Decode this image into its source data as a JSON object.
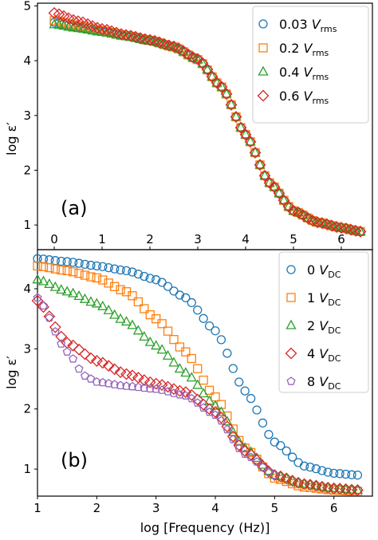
{
  "chart_data": [
    {
      "type": "scatter",
      "panel_label": "(a)",
      "ylabel_main": "log ε",
      "ylabel_prime": "′",
      "xlabel": "",
      "xlim": [
        -0.35,
        6.65
      ],
      "ylim": [
        0.55,
        5.05
      ],
      "x_ticks": [
        "0",
        "1",
        "2",
        "3",
        "4",
        "5",
        "6"
      ],
      "y_ticks": [
        "1",
        "2",
        "3",
        "4",
        "5"
      ],
      "x_tick_position": "top-inside",
      "grid": false,
      "legend_position": "top-right",
      "series": [
        {
          "name": "0.03",
          "unit": "V",
          "subscript": "rms",
          "marker": "circle",
          "color": "#1f77b4",
          "x": [
            0,
            0.5,
            1,
            1.5,
            2,
            2.5,
            3,
            3.5,
            4,
            4.5,
            5,
            5.5,
            6,
            6.4
          ],
          "y": [
            4.7,
            4.62,
            4.54,
            4.45,
            4.36,
            4.25,
            4.02,
            3.52,
            2.65,
            1.77,
            1.26,
            1.05,
            0.95,
            0.88
          ]
        },
        {
          "name": "0.2",
          "unit": "V",
          "subscript": "rms",
          "marker": "square",
          "color": "#ff7f0e",
          "x": [
            0,
            0.5,
            1,
            1.5,
            2,
            2.5,
            3,
            3.5,
            4,
            4.5,
            5,
            5.5,
            6,
            6.4
          ],
          "y": [
            4.73,
            4.64,
            4.55,
            4.46,
            4.37,
            4.25,
            4.02,
            3.52,
            2.65,
            1.77,
            1.26,
            1.05,
            0.95,
            0.88
          ]
        },
        {
          "name": "0.4",
          "unit": "V",
          "subscript": "rms",
          "marker": "triangle",
          "color": "#2ca02c",
          "x": [
            0,
            0.5,
            1,
            1.5,
            2,
            2.5,
            3,
            3.5,
            4,
            4.5,
            5,
            5.5,
            6,
            6.4
          ],
          "y": [
            4.66,
            4.59,
            4.52,
            4.44,
            4.36,
            4.25,
            4.02,
            3.52,
            2.65,
            1.77,
            1.26,
            1.05,
            0.95,
            0.88
          ]
        },
        {
          "name": "0.6",
          "unit": "V",
          "subscript": "rms",
          "marker": "diamond",
          "color": "#d62728",
          "x": [
            0,
            0.5,
            1,
            1.5,
            2,
            2.5,
            3,
            3.5,
            4,
            4.5,
            5,
            5.5,
            6,
            6.4
          ],
          "y": [
            4.87,
            4.72,
            4.58,
            4.47,
            4.38,
            4.26,
            4.03,
            3.52,
            2.65,
            1.77,
            1.26,
            1.05,
            0.95,
            0.88
          ]
        }
      ]
    },
    {
      "type": "scatter",
      "panel_label": "(b)",
      "ylabel_main": "log ε",
      "ylabel_prime": "′",
      "xlabel": "log [Frequency (Hz)]",
      "xlim": [
        1.0,
        6.65
      ],
      "ylim": [
        0.55,
        4.65
      ],
      "x_ticks": [
        "1",
        "2",
        "3",
        "4",
        "5",
        "6"
      ],
      "y_ticks": [
        "1",
        "2",
        "3",
        "4"
      ],
      "x_tick_position": "bottom",
      "grid": false,
      "legend_position": "top-right",
      "series": [
        {
          "name": "0",
          "unit": "V",
          "subscript": "DC",
          "marker": "circle",
          "color": "#1f77b4",
          "x": [
            1.0,
            1.5,
            2.0,
            2.5,
            3.0,
            3.5,
            4.0,
            4.5,
            5.0,
            5.5,
            6.0,
            6.4
          ],
          "y": [
            4.5,
            4.45,
            4.38,
            4.3,
            4.15,
            3.85,
            3.3,
            2.3,
            1.45,
            1.05,
            0.93,
            0.9
          ]
        },
        {
          "name": "1",
          "unit": "V",
          "subscript": "DC",
          "marker": "square",
          "color": "#ff7f0e",
          "x": [
            1.0,
            1.5,
            2.0,
            2.5,
            3.0,
            3.5,
            4.0,
            4.5,
            5.0,
            5.5,
            6.0,
            6.4
          ],
          "y": [
            4.38,
            4.3,
            4.18,
            3.95,
            3.5,
            2.95,
            2.2,
            1.35,
            0.85,
            0.7,
            0.65,
            0.63
          ]
        },
        {
          "name": "2",
          "unit": "V",
          "subscript": "DC",
          "marker": "triangle",
          "color": "#2ca02c",
          "x": [
            1.0,
            1.5,
            2.0,
            2.5,
            3.0,
            3.5,
            4.0,
            4.5,
            5.0,
            5.5,
            6.0,
            6.4
          ],
          "y": [
            4.15,
            3.95,
            3.75,
            3.45,
            3.05,
            2.6,
            2.05,
            1.35,
            0.9,
            0.75,
            0.68,
            0.65
          ]
        },
        {
          "name": "4",
          "unit": "V",
          "subscript": "DC",
          "marker": "diamond",
          "color": "#d62728",
          "x": [
            1.0,
            1.5,
            2.0,
            2.5,
            3.0,
            3.5,
            4.0,
            4.5,
            5.0,
            5.5,
            6.0,
            6.4
          ],
          "y": [
            3.8,
            3.1,
            2.8,
            2.58,
            2.42,
            2.28,
            1.95,
            1.3,
            0.9,
            0.75,
            0.68,
            0.65
          ]
        },
        {
          "name": "8",
          "unit": "V",
          "subscript": "DC",
          "marker": "pentagon",
          "color": "#9467bd",
          "x": [
            1.0,
            1.5,
            1.8,
            2.0,
            2.5,
            3.0,
            3.5,
            4.0,
            4.5,
            5.0
          ],
          "y": [
            3.85,
            2.95,
            2.55,
            2.45,
            2.38,
            2.33,
            2.22,
            1.9,
            1.25,
            0.9
          ]
        }
      ]
    }
  ]
}
